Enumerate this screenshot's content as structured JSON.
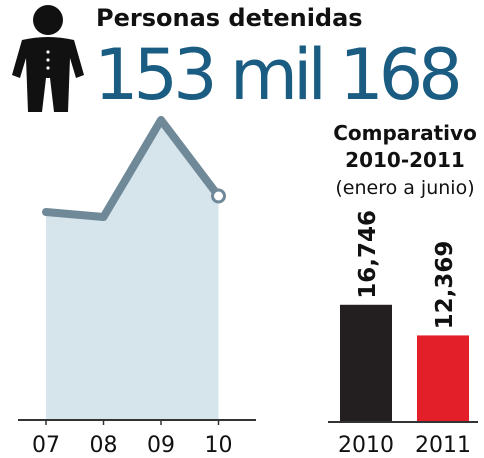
{
  "header": {
    "title": "Personas detenidas",
    "total": "153 mil 168"
  },
  "chart_data": [
    {
      "type": "area",
      "categories": [
        "07",
        "08",
        "09",
        "10"
      ],
      "values": [
        208,
        203,
        300,
        224
      ],
      "ylim": [
        0,
        320
      ],
      "color": "#6f8999",
      "fill": "#d6e4eb"
    },
    {
      "type": "bar",
      "title": [
        "Comparativo",
        "2010-2011"
      ],
      "subtitle": "(enero a junio)",
      "categories": [
        "2010",
        "2011"
      ],
      "values": [
        16746,
        12369
      ],
      "value_labels": [
        "16,746",
        "12,369"
      ],
      "colors": [
        "#231f20",
        "#e3202a"
      ],
      "ylim": [
        0,
        40000
      ]
    }
  ]
}
